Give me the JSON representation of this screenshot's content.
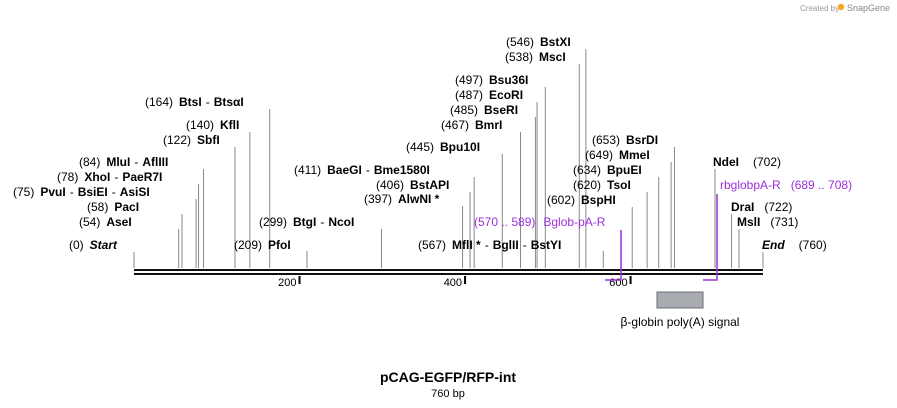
{
  "credit": "Created by",
  "brand": "SnapGene",
  "title": "pCAG-EGFP/RFP-int",
  "length_label": "760 bp",
  "length_bp": 760,
  "ticks": [
    200,
    400,
    600
  ],
  "colors": {
    "primer": "#9b30d9",
    "feature": "#a7abb0",
    "line": "#888888",
    "backbone": "#111111"
  },
  "sites": [
    {
      "id": "start",
      "pos": "(0)",
      "names": [
        "Start"
      ],
      "italic": true,
      "bp": 0
    },
    {
      "id": "asei",
      "pos": "(54)",
      "names": [
        "AseI"
      ],
      "bp": 54
    },
    {
      "id": "paci",
      "pos": "(58)",
      "names": [
        "PacI"
      ],
      "bp": 58
    },
    {
      "id": "pvui",
      "pos": "(75)",
      "names": [
        "PvuI",
        "BsiEI",
        "AsiSI"
      ],
      "bp": 75
    },
    {
      "id": "xhoi",
      "pos": "(78)",
      "names": [
        "XhoI",
        "PaeR7I"
      ],
      "bp": 78
    },
    {
      "id": "mlui",
      "pos": "(84)",
      "names": [
        "MluI",
        "AflIII"
      ],
      "bp": 84
    },
    {
      "id": "sbfi",
      "pos": "(122)",
      "names": [
        "SbfI"
      ],
      "bp": 122
    },
    {
      "id": "kfli",
      "pos": "(140)",
      "names": [
        "KflI"
      ],
      "bp": 140
    },
    {
      "id": "btsi",
      "pos": "(164)",
      "names": [
        "BtsI",
        "BtsαI"
      ],
      "bp": 164
    },
    {
      "id": "pfoi",
      "pos": "(209)",
      "names": [
        "PfoI"
      ],
      "bp": 209
    },
    {
      "id": "btgi",
      "pos": "(299)",
      "names": [
        "BtgI",
        "NcoI"
      ],
      "bp": 299
    },
    {
      "id": "alwni",
      "pos": "(397)",
      "names": [
        "AlwNI *"
      ],
      "bp": 397
    },
    {
      "id": "bstapi",
      "pos": "(406)",
      "names": [
        "BstAPI"
      ],
      "bp": 406
    },
    {
      "id": "baegi",
      "pos": "(411)",
      "names": [
        "BaeGI",
        "Bme1580I"
      ],
      "bp": 411
    },
    {
      "id": "bpu10i",
      "pos": "(445)",
      "names": [
        "Bpu10I"
      ],
      "bp": 445
    },
    {
      "id": "bmri",
      "pos": "(467)",
      "names": [
        "BmrI"
      ],
      "bp": 467
    },
    {
      "id": "bseri",
      "pos": "(485)",
      "names": [
        "BseRI"
      ],
      "bp": 485
    },
    {
      "id": "ecori",
      "pos": "(487)",
      "names": [
        "EcoRI"
      ],
      "bp": 487
    },
    {
      "id": "bsu36i",
      "pos": "(497)",
      "names": [
        "Bsu36I"
      ],
      "bp": 497
    },
    {
      "id": "msci",
      "pos": "(538)",
      "names": [
        "MscI"
      ],
      "bp": 538
    },
    {
      "id": "bstxi",
      "pos": "(546)",
      "names": [
        "BstXI"
      ],
      "bp": 546
    },
    {
      "id": "mfli",
      "pos": "(567)",
      "names": [
        "MflI *",
        "BglII",
        "BstYI"
      ],
      "bp": 567
    },
    {
      "id": "bsphi",
      "pos": "(602)",
      "names": [
        "BspHI"
      ],
      "bp": 602
    },
    {
      "id": "tsoi",
      "pos": "(620)",
      "names": [
        "TsoI"
      ],
      "bp": 620
    },
    {
      "id": "bpuei",
      "pos": "(634)",
      "names": [
        "BpuEI"
      ],
      "bp": 634
    },
    {
      "id": "mmei",
      "pos": "(649)",
      "names": [
        "MmeI"
      ],
      "bp": 649
    },
    {
      "id": "bsrdi",
      "pos": "(653)",
      "names": [
        "BsrDI"
      ],
      "bp": 653
    },
    {
      "id": "ndei",
      "pos": "(702)",
      "names": [
        "NdeI"
      ],
      "bp": 702
    },
    {
      "id": "drai",
      "pos": "(722)",
      "names": [
        "DraI"
      ],
      "bp": 722
    },
    {
      "id": "msli",
      "pos": "(731)",
      "names": [
        "MslI"
      ],
      "bp": 731
    },
    {
      "id": "end",
      "pos": "(760)",
      "names": [
        "End"
      ],
      "italic": true,
      "bp": 760
    }
  ],
  "primers": [
    {
      "id": "bglob",
      "name": "Bglob-pA-R",
      "range": "(570 .. 589)",
      "start": 570,
      "end": 589
    },
    {
      "id": "rbglob",
      "name": "rbglobpA-R",
      "range": "(689 .. 708)",
      "start": 689,
      "end": 708
    }
  ],
  "features": [
    {
      "id": "bglobin",
      "name": "β-globin poly(A) signal"
    }
  ]
}
